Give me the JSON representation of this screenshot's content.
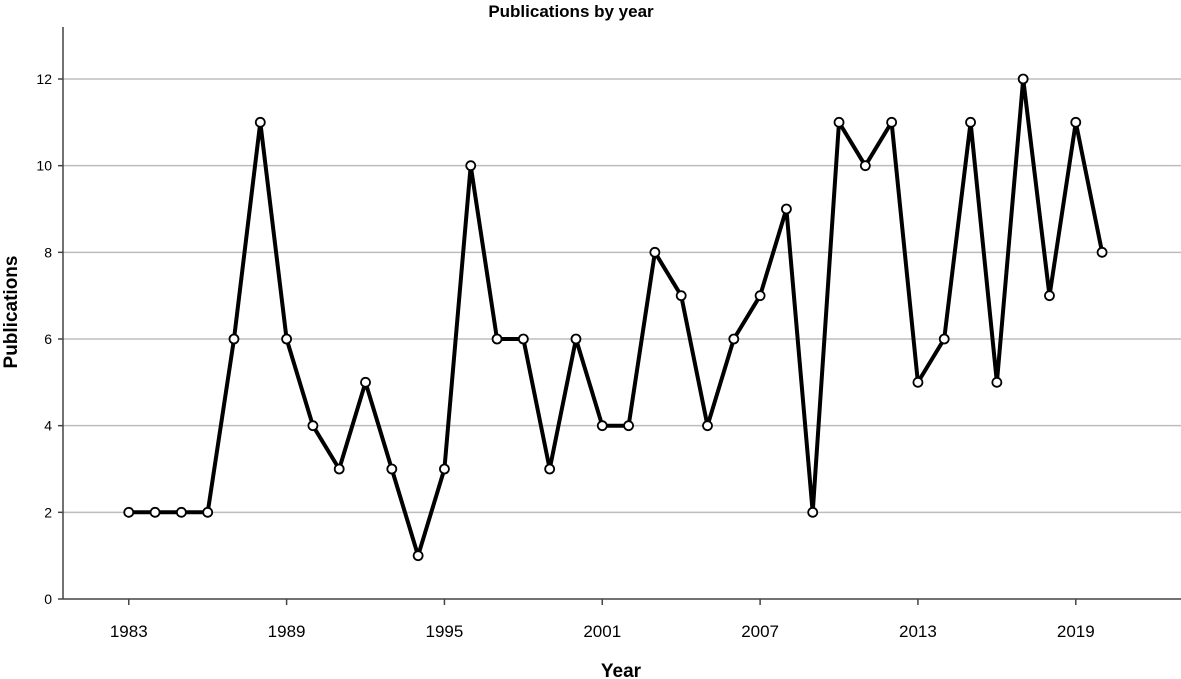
{
  "chart_data": {
    "type": "line",
    "title": "Publications by year",
    "xlabel": "Year",
    "ylabel": "Publications",
    "ylim": [
      0,
      13.2
    ],
    "xlim": [
      1980.5,
      2023
    ],
    "yticks": [
      0,
      2,
      4,
      6,
      8,
      10,
      12
    ],
    "xticks": [
      1983,
      1989,
      1995,
      2001,
      2007,
      2013,
      2019
    ],
    "grid": "horizontal",
    "x": [
      1983,
      1984,
      1985,
      1986,
      1987,
      1988,
      1989,
      1990,
      1991,
      1992,
      1993,
      1994,
      1995,
      1996,
      1997,
      1998,
      1999,
      2000,
      2001,
      2002,
      2003,
      2004,
      2005,
      2006,
      2007,
      2008,
      2009,
      2010,
      2011,
      2012,
      2013,
      2014,
      2015,
      2016,
      2017,
      2018,
      2019,
      2020
    ],
    "values": [
      2,
      2,
      2,
      2,
      6,
      11,
      6,
      4,
      3,
      5,
      3,
      1,
      3,
      10,
      6,
      6,
      3,
      6,
      4,
      4,
      8,
      7,
      4,
      6,
      7,
      9,
      2,
      11,
      10,
      11,
      5,
      6,
      11,
      5,
      12,
      7,
      11,
      8
    ]
  }
}
